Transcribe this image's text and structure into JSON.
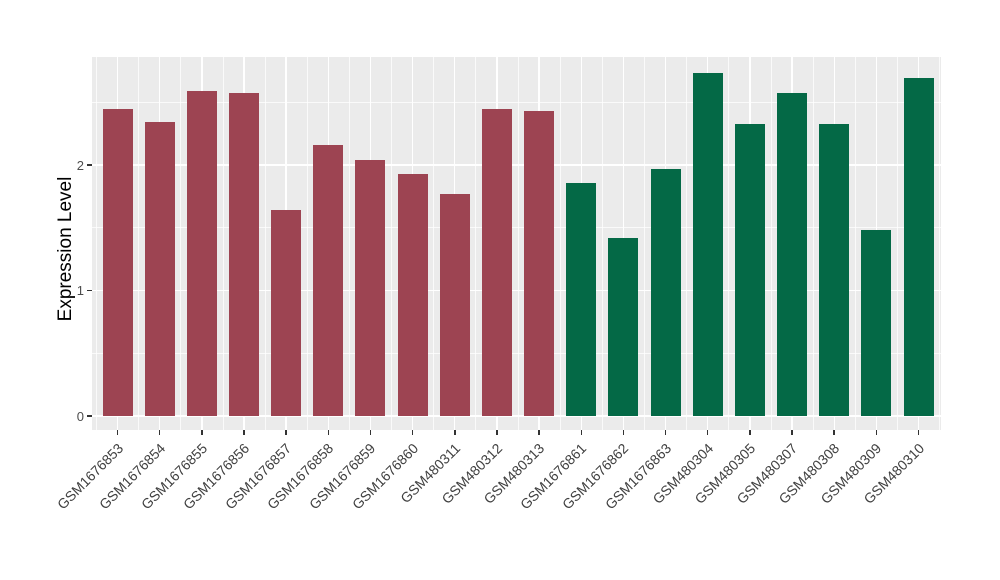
{
  "figure": {
    "background": "#FFFFFF",
    "panel_background": "#EBEBEB",
    "gridline_color": "#FFFFFF",
    "tick_mark_color": "#333333",
    "axis_text_color": "#4D4D4D",
    "group_fill_colors": [
      "#9D4452",
      "#046946"
    ]
  },
  "chart_data": {
    "type": "bar",
    "title": "",
    "xlabel": "",
    "ylabel": "Expression Level",
    "ylim": [
      0,
      2.86
    ],
    "yticks": [
      0,
      1,
      2
    ],
    "minor_yticks": [
      0.5,
      1.5,
      2.5
    ],
    "grid": "on",
    "legend": "none",
    "x_label_rotation_deg": 45,
    "categories": [
      "GSM1676853",
      "GSM1676854",
      "GSM1676855",
      "GSM1676856",
      "GSM1676857",
      "GSM1676858",
      "GSM1676859",
      "GSM1676860",
      "GSM480311",
      "GSM480312",
      "GSM480313",
      "GSM1676861",
      "GSM1676862",
      "GSM1676863",
      "GSM480304",
      "GSM480305",
      "GSM480307",
      "GSM480308",
      "GSM480309",
      "GSM480310"
    ],
    "values": [
      2.45,
      2.34,
      2.59,
      2.57,
      1.64,
      2.16,
      2.04,
      1.93,
      1.77,
      2.45,
      2.43,
      1.86,
      1.42,
      1.97,
      2.73,
      2.33,
      2.57,
      2.33,
      1.48,
      2.69
    ],
    "bar_colors": [
      "#9D4452",
      "#9D4452",
      "#9D4452",
      "#9D4452",
      "#9D4452",
      "#9D4452",
      "#9D4452",
      "#9D4452",
      "#9D4452",
      "#9D4452",
      "#9D4452",
      "#046946",
      "#046946",
      "#046946",
      "#046946",
      "#046946",
      "#046946",
      "#046946",
      "#046946",
      "#046946"
    ]
  }
}
